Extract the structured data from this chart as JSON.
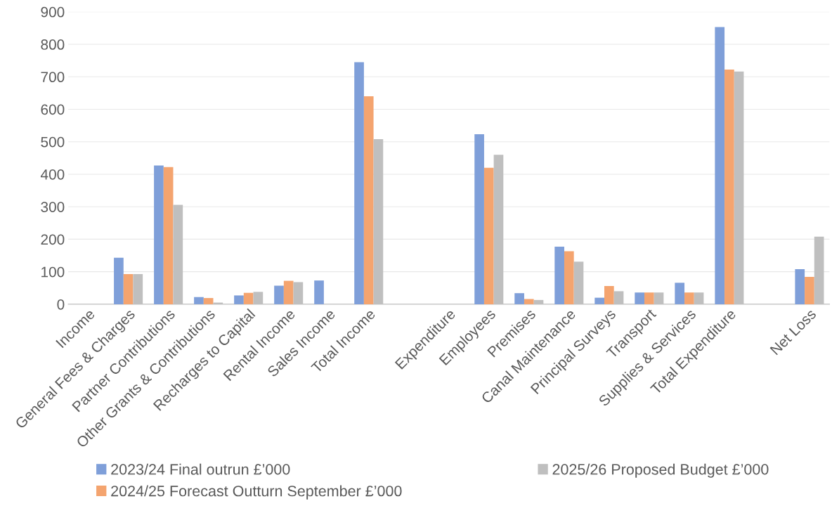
{
  "chart_data": {
    "type": "bar",
    "categories": [
      "Income",
      "General Fees & Charges",
      "Partner Contributions",
      "Other Grants & Contributions",
      "Recharges to Capital",
      "Rental Income",
      "Sales Income",
      "Total Income",
      null,
      "Expenditure",
      "Employees",
      "Premises",
      "Canal Maintenance",
      "Principal Surveys",
      "Transport",
      "Supplies & Services",
      "Total Expenditure",
      null,
      "Net Loss"
    ],
    "series": [
      {
        "name": "2023/24 Final outrun £’000",
        "color": "#7f9fd9",
        "values": [
          null,
          143,
          427,
          22,
          27,
          57,
          73,
          745,
          null,
          null,
          523,
          34,
          177,
          20,
          36,
          66,
          853,
          null,
          108
        ]
      },
      {
        "name": "2024/25 Forecast Outturn September £’000",
        "color": "#f4a46f",
        "values": [
          null,
          93,
          422,
          19,
          35,
          72,
          0,
          640,
          null,
          null,
          420,
          16,
          163,
          56,
          36,
          36,
          722,
          null,
          84
        ]
      },
      {
        "name": "2025/26 Proposed Budget £’000",
        "color": "#bfbfbf",
        "values": [
          null,
          93,
          306,
          5,
          38,
          68,
          0,
          508,
          null,
          null,
          460,
          13,
          131,
          40,
          36,
          36,
          716,
          null,
          208
        ]
      }
    ],
    "ylim": [
      0,
      900
    ],
    "yticks": [
      0,
      100,
      200,
      300,
      400,
      500,
      600,
      700,
      800,
      900
    ],
    "grid": "y",
    "legend": "bottom"
  }
}
